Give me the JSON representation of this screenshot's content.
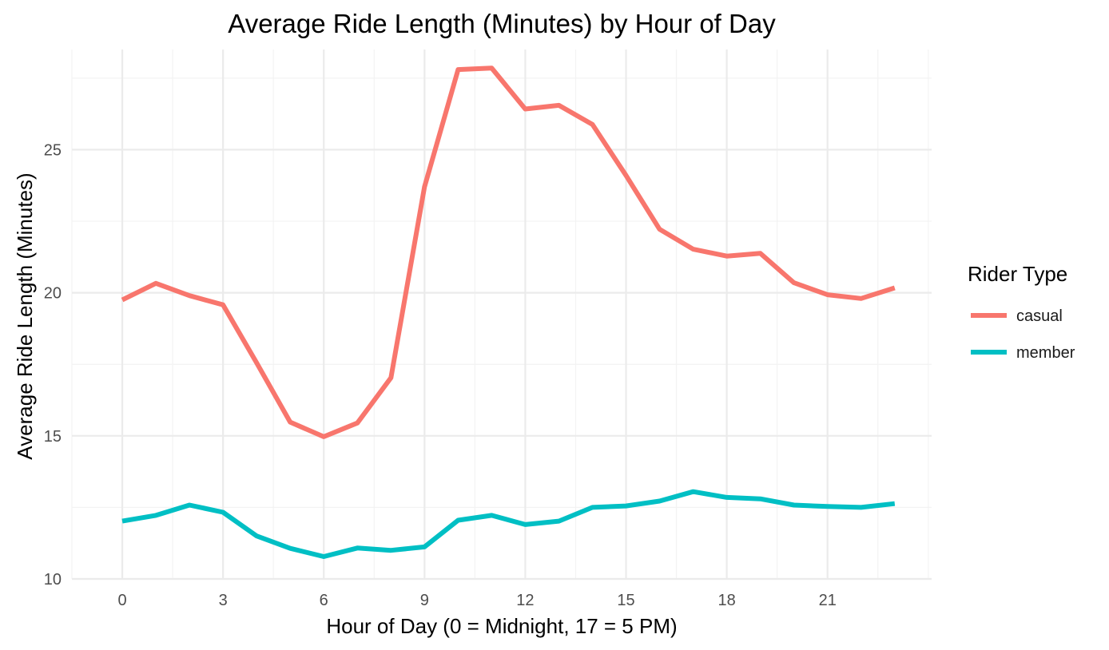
{
  "chart_data": {
    "type": "line",
    "title": "Average Ride Length (Minutes) by Hour of Day",
    "xlabel": "Hour of Day (0 = Midnight, 17 = 5 PM)",
    "ylabel": "Average Ride Length (Minutes)",
    "x": [
      0,
      1,
      2,
      3,
      4,
      5,
      6,
      7,
      8,
      9,
      10,
      11,
      12,
      13,
      14,
      15,
      16,
      17,
      18,
      19,
      20,
      21,
      22,
      23
    ],
    "xlim": [
      -1.5,
      24.1
    ],
    "ylim": [
      10,
      28.5
    ],
    "x_ticks": [
      0,
      3,
      6,
      9,
      12,
      15,
      18,
      21
    ],
    "y_ticks": [
      10,
      15,
      20,
      25
    ],
    "grid": true,
    "legend": {
      "title": "Rider Type",
      "position": "right"
    },
    "series": [
      {
        "name": "casual",
        "color": "#F8766D",
        "values": [
          19.75,
          20.33,
          19.9,
          19.58,
          17.55,
          15.48,
          14.97,
          15.45,
          17.03,
          23.7,
          27.8,
          27.85,
          26.42,
          26.55,
          25.88,
          24.1,
          22.22,
          21.52,
          21.28,
          21.38,
          20.35,
          19.93,
          19.8,
          20.17
        ]
      },
      {
        "name": "member",
        "color": "#00BFC4",
        "values": [
          12.02,
          12.22,
          12.58,
          12.33,
          11.5,
          11.07,
          10.78,
          11.08,
          11.0,
          11.12,
          12.05,
          12.22,
          11.9,
          12.02,
          12.5,
          12.55,
          12.72,
          13.05,
          12.85,
          12.8,
          12.58,
          12.53,
          12.5,
          12.63
        ]
      }
    ]
  }
}
